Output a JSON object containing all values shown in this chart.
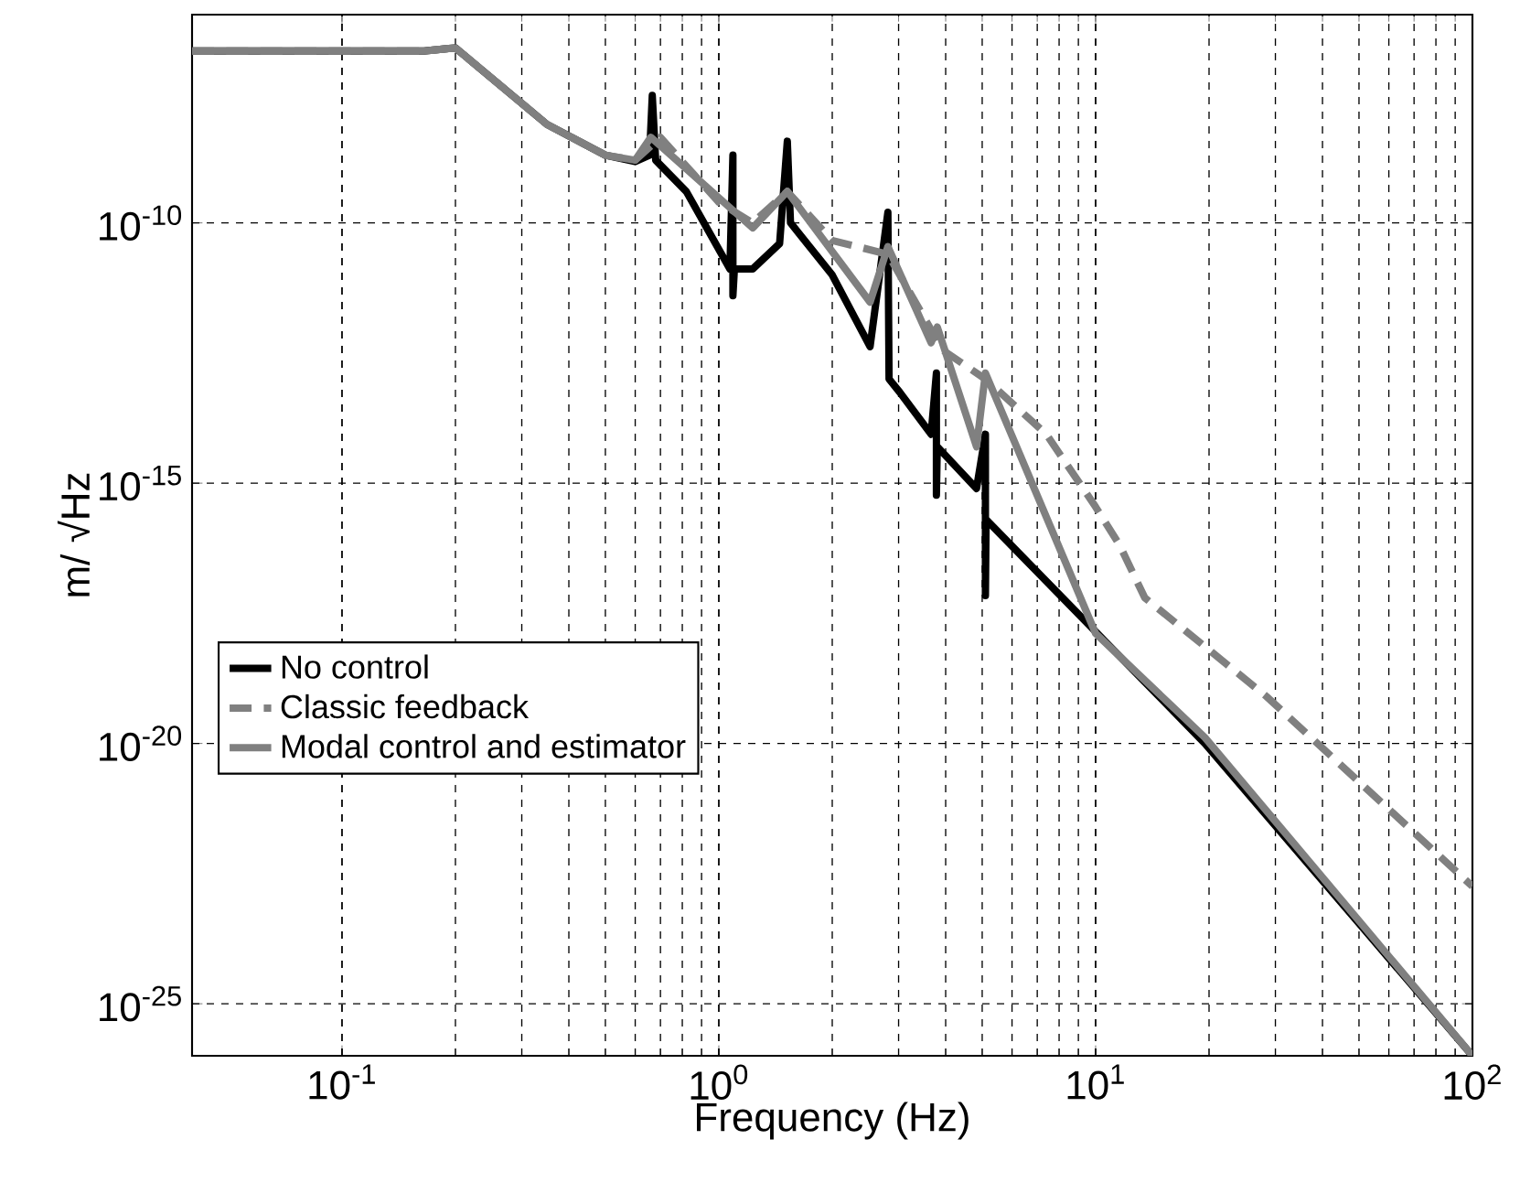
{
  "chart_data": {
    "type": "line",
    "xlabel": "Frequency (Hz)",
    "ylabel": "m/ √Hz",
    "log": "xy",
    "grid": true,
    "legend": "bottom left",
    "xlim": [
      0.04,
      100
    ],
    "ylim": [
      1e-26,
      1e-06
    ],
    "xticks": [
      {
        "value": 0.1,
        "label": "10$^{-1}$"
      },
      {
        "value": 1,
        "label": "10$^{0}$"
      },
      {
        "value": 10,
        "label": "10$^{1}$"
      },
      {
        "value": 100,
        "label": "10$^{2}$"
      }
    ],
    "yticks": [
      {
        "value": 1e-25,
        "label": "10$^{-25}$"
      },
      {
        "value": 1e-20,
        "label": "10$^{-20}$"
      },
      {
        "value": 1e-15,
        "label": "10$^{-15}$"
      },
      {
        "value": 1e-10,
        "label": "10$^{-10}$"
      }
    ],
    "series": [
      {
        "name": "No control",
        "color": "#000000",
        "line_style": "solid",
        "x": [
          0.04,
          0.165,
          0.2,
          0.35,
          0.5,
          0.6,
          0.655,
          0.666,
          0.68,
          0.82,
          1.07,
          1.09,
          1.09,
          1.1,
          1.23,
          1.45,
          1.52,
          1.55,
          2.0,
          2.52,
          2.81,
          2.83,
          3.02,
          3.66,
          3.78,
          3.78,
          3.8,
          4.83,
          5.1,
          5.1,
          5.12,
          19.5,
          100
        ],
        "values": [
          2e-07,
          2e-07,
          2.3e-07,
          7.8e-09,
          2e-09,
          1.5e-09,
          2e-09,
          2.8e-08,
          1.6e-09,
          4e-10,
          1.3e-11,
          2e-09,
          4e-12,
          1.3e-11,
          1.3e-11,
          4e-11,
          3.7e-09,
          1e-10,
          1e-11,
          4.2e-13,
          1.6e-10,
          1e-13,
          5.6e-14,
          8.7e-15,
          1.3e-13,
          5.9e-16,
          5e-15,
          7.9e-16,
          8.7e-15,
          6.9e-18,
          2e-16,
          1e-20,
          1e-26
        ]
      },
      {
        "name": "Classic feedback",
        "color": "#808080",
        "line_style": "dashed",
        "x": [
          0.04,
          0.165,
          0.2,
          0.35,
          0.5,
          0.6,
          0.7,
          1.0,
          1.23,
          1.52,
          2.0,
          2.81,
          3.93,
          5.1,
          7.4,
          10,
          11.6,
          13.5,
          28.4,
          100
        ],
        "values": [
          2e-07,
          2e-07,
          2.3e-07,
          7.8e-09,
          2e-09,
          1.6e-09,
          4.4e-09,
          2.5e-10,
          1e-10,
          4e-10,
          4.6e-11,
          2.5e-11,
          3.6e-13,
          1e-13,
          8.7e-15,
          3.5e-16,
          6.3e-17,
          6.3e-18,
          8e-20,
          1.8e-23
        ]
      },
      {
        "name": "Modal control and estimator",
        "color": "#808080",
        "line_style": "solid",
        "x": [
          0.04,
          0.165,
          0.2,
          0.35,
          0.5,
          0.6,
          0.66,
          1.23,
          1.52,
          2.52,
          2.81,
          3.66,
          3.8,
          4.83,
          5.1,
          10,
          19.5,
          100
        ],
        "values": [
          2e-07,
          2e-07,
          2.3e-07,
          7.8e-09,
          2e-09,
          1.6e-09,
          4.4e-09,
          8e-11,
          4e-10,
          3e-12,
          3.5e-11,
          5e-13,
          1e-12,
          5e-15,
          1.3e-13,
          1.3e-18,
          1.3e-20,
          1e-26
        ]
      }
    ]
  }
}
